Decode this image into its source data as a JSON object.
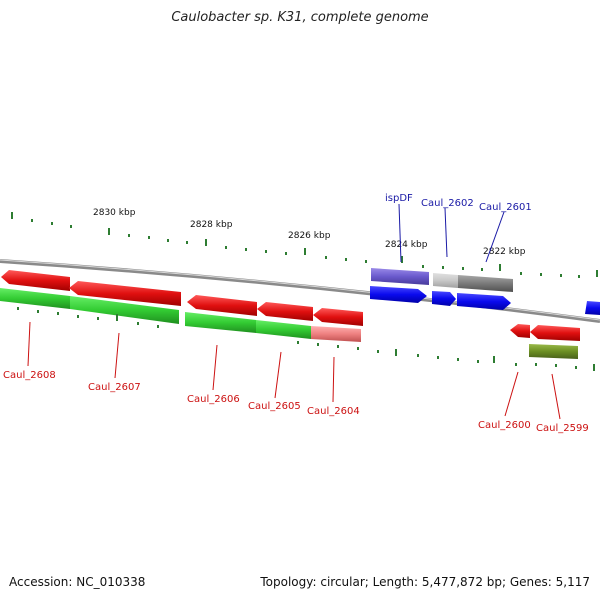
{
  "title": "Caulobacter sp. K31, complete genome",
  "footer": {
    "accession": "Accession: NC_010338",
    "summary": "Topology: circular; Length: 5,477,872 bp; Genes: 5,117"
  },
  "scale": {
    "labels": [
      "2830 kbp",
      "2828 kbp",
      "2826 kbp",
      "2824 kbp",
      "2822 kbp"
    ]
  },
  "genes": {
    "top_labels": [
      "ispDF",
      "Caul_2602",
      "Caul_2601"
    ],
    "bottom_labels": [
      "Caul_2608",
      "Caul_2607",
      "Caul_2606",
      "Caul_2605",
      "Caul_2604",
      "Caul_2600",
      "Caul_2599"
    ]
  },
  "colors": {
    "red": "#e01010",
    "green": "#33cc33",
    "blue": "#0a0aee",
    "purple": "#6a5acd",
    "olive": "#6b8e23",
    "gray": "#808080",
    "pink": "#ee8080"
  }
}
